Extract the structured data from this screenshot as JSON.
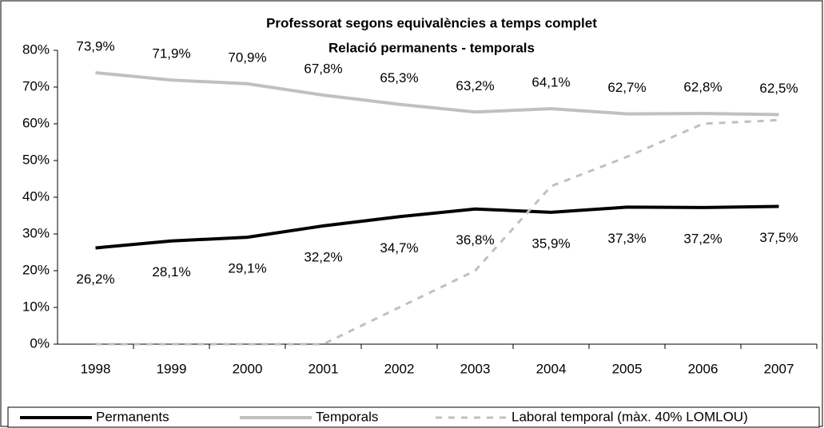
{
  "chart_data": {
    "type": "line",
    "title": "Professorat segons equivalències a temps complet",
    "subtitle": "Relació permanents - temporals",
    "categories": [
      "1998",
      "1999",
      "2000",
      "2001",
      "2002",
      "2003",
      "2004",
      "2005",
      "2006",
      "2007"
    ],
    "series": [
      {
        "name": "Permanents",
        "color": "#000000",
        "dash": false,
        "label_side": "below",
        "values": [
          26.2,
          28.1,
          29.1,
          32.2,
          34.7,
          36.8,
          35.9,
          37.3,
          37.2,
          37.5
        ],
        "value_labels": [
          "26,2%",
          "28,1%",
          "29,1%",
          "32,2%",
          "34,7%",
          "36,8%",
          "35,9%",
          "37,3%",
          "37,2%",
          "37,5%"
        ]
      },
      {
        "name": "Temporals",
        "color": "#c0c0c0",
        "dash": false,
        "label_side": "above",
        "values": [
          73.9,
          71.9,
          70.9,
          67.8,
          65.3,
          63.2,
          64.1,
          62.7,
          62.8,
          62.5
        ],
        "value_labels": [
          "73,9%",
          "71,9%",
          "70,9%",
          "67,8%",
          "65,3%",
          "63,2%",
          "64,1%",
          "62,7%",
          "62,8%",
          "62,5%"
        ]
      },
      {
        "name": "Laboral temporal (màx. 40% LOMLOU)",
        "color": "#c0c0c0",
        "dash": true,
        "values": [
          0,
          0,
          0,
          0,
          10,
          20,
          43,
          51,
          60,
          61
        ]
      }
    ],
    "ylim": [
      0,
      80
    ],
    "yticks": [
      {
        "value": 0,
        "label": "0%"
      },
      {
        "value": 10,
        "label": "10%"
      },
      {
        "value": 20,
        "label": "20%"
      },
      {
        "value": 30,
        "label": "30%"
      },
      {
        "value": 40,
        "label": "40%"
      },
      {
        "value": 50,
        "label": "50%"
      },
      {
        "value": 60,
        "label": "60%"
      },
      {
        "value": 70,
        "label": "70%"
      },
      {
        "value": 80,
        "label": "80%"
      }
    ],
    "grid": false,
    "legend": "bottom"
  }
}
